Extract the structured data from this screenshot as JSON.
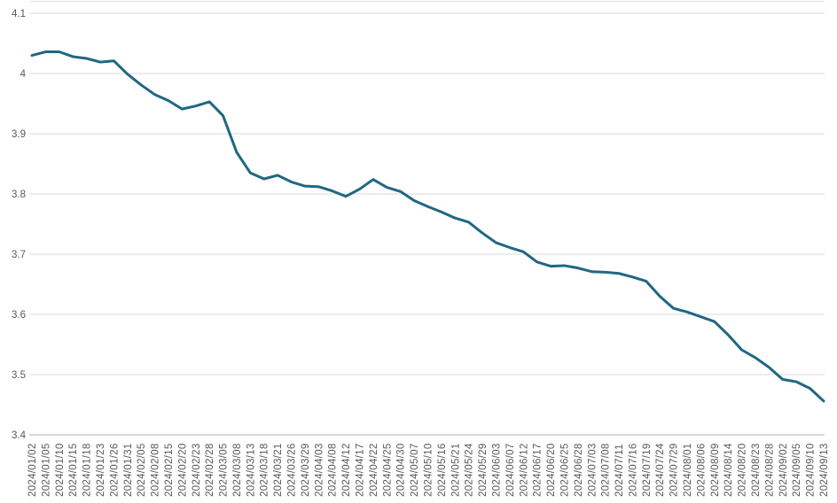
{
  "chart_data": {
    "type": "line",
    "title": "",
    "xlabel": "",
    "ylabel": "",
    "legend": "none",
    "grid": "horizontal",
    "x_label_rotation": -90,
    "ylim": [
      3.4,
      4.1
    ],
    "ytick_labels": [
      "4.1",
      "4",
      "3.9",
      "3.8",
      "3.7",
      "3.6",
      "3.5",
      "3.4"
    ],
    "x": [
      "2024/01/02",
      "2024/01/05",
      "2024/01/10",
      "2024/01/15",
      "2024/01/18",
      "2024/01/23",
      "2024/01/26",
      "2024/01/31",
      "2024/02/05",
      "2024/02/08",
      "2024/02/15",
      "2024/02/20",
      "2024/02/23",
      "2024/02/28",
      "2024/03/05",
      "2024/03/08",
      "2024/03/13",
      "2024/03/18",
      "2024/03/21",
      "2024/03/26",
      "2024/03/29",
      "2024/04/03",
      "2024/04/08",
      "2024/04/12",
      "2024/04/17",
      "2024/04/22",
      "2024/04/25",
      "2024/04/30",
      "2024/05/07",
      "2024/05/10",
      "2024/05/16",
      "2024/05/21",
      "2024/05/24",
      "2024/05/29",
      "2024/06/03",
      "2024/06/07",
      "2024/06/12",
      "2024/06/17",
      "2024/06/20",
      "2024/06/25",
      "2024/06/28",
      "2024/07/03",
      "2024/07/08",
      "2024/07/11",
      "2024/07/16",
      "2024/07/19",
      "2024/07/24",
      "2024/07/29",
      "2024/08/01",
      "2024/08/06",
      "2024/08/09",
      "2024/08/14",
      "2024/08/20",
      "2024/08/23",
      "2024/08/28",
      "2024/09/02",
      "2024/09/05",
      "2024/09/10",
      "2024/09/13"
    ],
    "values": [
      4.03,
      4.036,
      4.036,
      4.028,
      4.025,
      4.019,
      4.021,
      3.999,
      3.981,
      3.965,
      3.955,
      3.941,
      3.946,
      3.953,
      3.93,
      3.869,
      3.835,
      3.825,
      3.831,
      3.82,
      3.813,
      3.812,
      3.805,
      3.796,
      3.808,
      3.824,
      3.811,
      3.804,
      3.789,
      3.779,
      3.77,
      3.76,
      3.753,
      3.735,
      3.719,
      3.711,
      3.704,
      3.687,
      3.68,
      3.681,
      3.677,
      3.671,
      3.67,
      3.668,
      3.662,
      3.655,
      3.63,
      3.61,
      3.604,
      3.596,
      3.588,
      3.566,
      3.541,
      3.528,
      3.512,
      3.492,
      3.488,
      3.477,
      3.456
    ],
    "colors": {
      "series": "#1f6783",
      "gridline": "#d9d9d9",
      "axis_line": "#b3b3b3",
      "top_border": "#e2e2e2",
      "tick_text": "#595959",
      "background": "#ffffff"
    }
  }
}
